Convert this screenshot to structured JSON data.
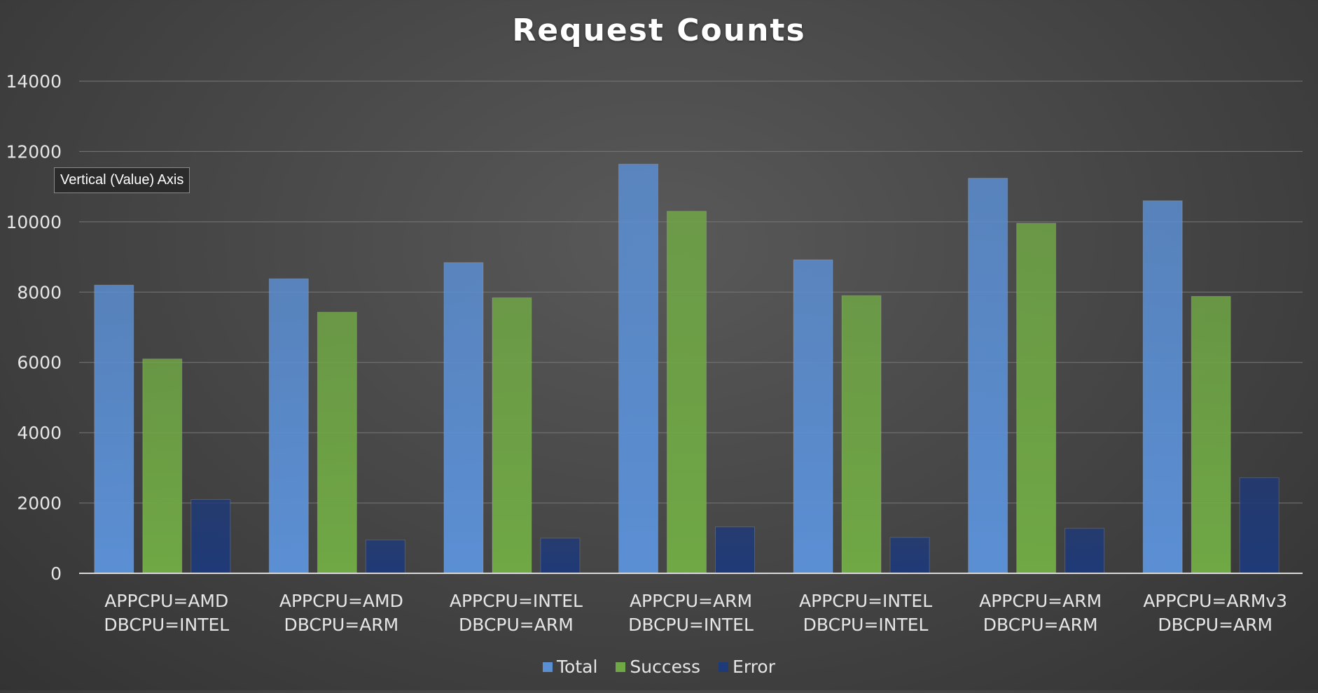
{
  "chart_data": {
    "type": "bar",
    "title": "Request Counts",
    "xlabel": "",
    "ylabel": "",
    "ylim": [
      0,
      14000
    ],
    "yticks": [
      0,
      2000,
      4000,
      6000,
      8000,
      10000,
      12000,
      14000
    ],
    "grid": true,
    "legend": "bottom",
    "categories": [
      [
        "APPCPU=AMD",
        "DBCPU=INTEL"
      ],
      [
        "APPCPU=AMD",
        "DBCPU=ARM"
      ],
      [
        "APPCPU=INTEL",
        "DBCPU=ARM"
      ],
      [
        "APPCPU=ARM",
        "DBCPU=INTEL"
      ],
      [
        "APPCPU=INTEL",
        "DBCPU=INTEL"
      ],
      [
        "APPCPU=ARM",
        "DBCPU=ARM"
      ],
      [
        "APPCPU=ARMv3",
        "DBCPU=ARM"
      ]
    ],
    "series": [
      {
        "name": "Total",
        "color": "#5b8fd4",
        "values": [
          8200,
          8380,
          8840,
          11640,
          8920,
          11240,
          10600
        ]
      },
      {
        "name": "Success",
        "color": "#70a845",
        "values": [
          6100,
          7430,
          7840,
          10300,
          7900,
          9960,
          7880
        ]
      },
      {
        "name": "Error",
        "color": "#1f3a78",
        "values": [
          2100,
          950,
          1000,
          1320,
          1020,
          1280,
          2720
        ]
      }
    ]
  },
  "tooltip": {
    "text": "Vertical (Value) Axis"
  }
}
